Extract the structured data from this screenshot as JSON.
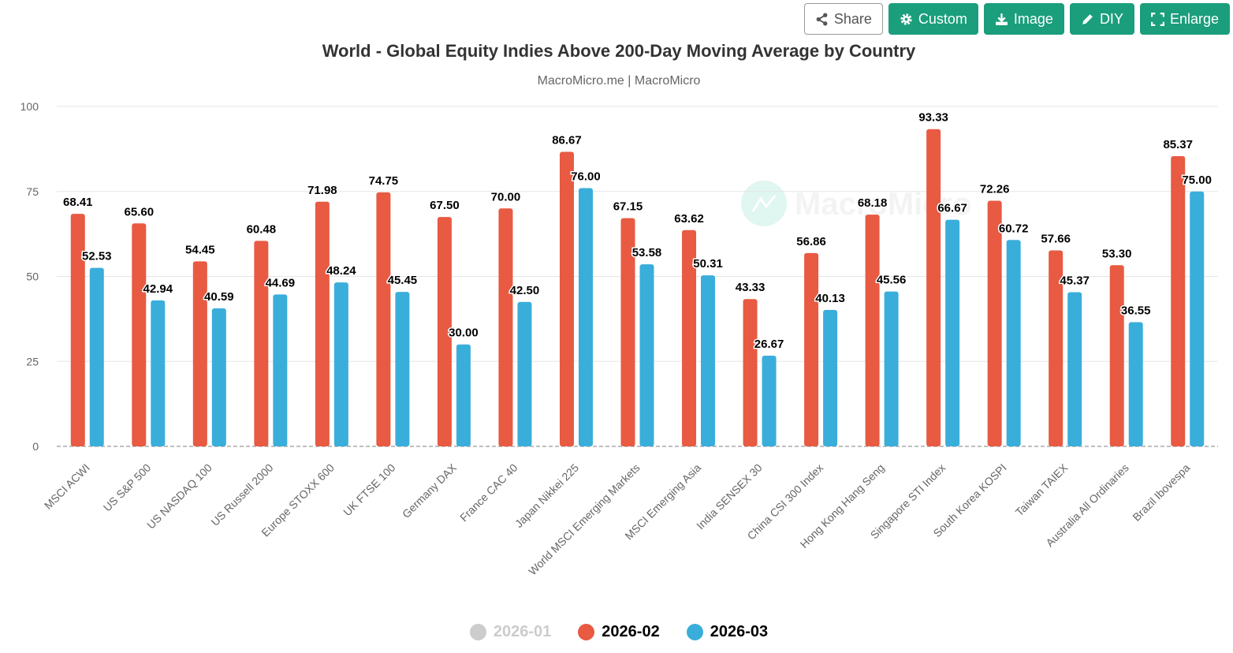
{
  "toolbar": {
    "share": "Share",
    "custom": "Custom",
    "image": "Image",
    "diy": "DIY",
    "enlarge": "Enlarge"
  },
  "watermark": "MacroMicro",
  "chart_data": {
    "type": "bar",
    "title": "World - Global Equity Indies Above 200-Day Moving Average by Country",
    "subtitle": "MacroMicro.me | MacroMicro",
    "xlabel": "",
    "ylabel": "",
    "ylim": [
      0,
      100
    ],
    "yticks": [
      0,
      25,
      50,
      75,
      100
    ],
    "grid": true,
    "legend_position": "bottom",
    "categories": [
      "MSCI ACWI",
      "US S&P 500",
      "US NASDAQ 100",
      "US Russell 2000",
      "Europe STOXX 600",
      "UK FTSE 100",
      "Germany DAX",
      "France CAC 40",
      "Japan Nikkei 225",
      "World MSCI Emerging Markets",
      "MSCI Emerging Asia",
      "India SENSEX 30",
      "China CSI 300 Index",
      "Hong Kong Hang Seng",
      "Singapore STI Index",
      "South Korea KOSPI",
      "Taiwan TAIEX",
      "Australia All Ordinaries",
      "Brazil Ibovespa"
    ],
    "series": [
      {
        "name": "2026-01",
        "color": "#cccccc",
        "visible": false,
        "values": []
      },
      {
        "name": "2026-02",
        "color": "#e85a42",
        "visible": true,
        "values": [
          68.41,
          65.6,
          54.45,
          60.48,
          71.98,
          74.75,
          67.5,
          70.0,
          86.67,
          67.15,
          63.62,
          43.33,
          56.86,
          68.18,
          93.33,
          72.26,
          57.66,
          53.3,
          85.37
        ]
      },
      {
        "name": "2026-03",
        "color": "#3aaedb",
        "visible": true,
        "values": [
          52.53,
          42.94,
          40.59,
          44.69,
          48.24,
          45.45,
          30.0,
          42.5,
          76.0,
          53.58,
          50.31,
          26.67,
          40.13,
          45.56,
          66.67,
          60.72,
          45.37,
          36.55,
          75.0
        ]
      }
    ]
  }
}
